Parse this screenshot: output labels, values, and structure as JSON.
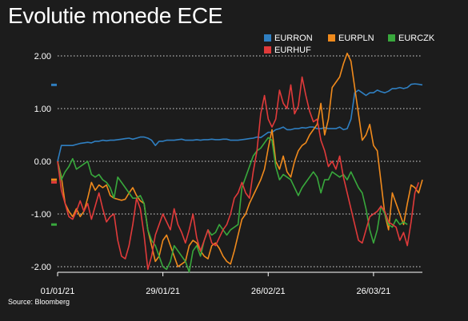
{
  "title": "Evolutie monede ECE",
  "source": "Source: Bloomberg",
  "chart_data": {
    "type": "line",
    "title": "Evolutie monede ECE",
    "xlabel": "",
    "ylabel": "",
    "ylim": [
      -2.1,
      2.1
    ],
    "y_ticks": [
      "2.00",
      "1.00",
      "0.00",
      "-1.00",
      "-2.00"
    ],
    "x_ticks": [
      "01/01/21",
      "29/01/21",
      "26/02/21",
      "26/03/21"
    ],
    "grid": "horizontal dotted",
    "legend_position": "top-right",
    "series": [
      {
        "name": "EURRON",
        "color": "#2f7fc1",
        "values": [
          0.0,
          0.3,
          0.3,
          0.3,
          0.3,
          0.32,
          0.34,
          0.35,
          0.36,
          0.35,
          0.38,
          0.38,
          0.4,
          0.39,
          0.4,
          0.4,
          0.41,
          0.42,
          0.43,
          0.44,
          0.42,
          0.44,
          0.46,
          0.46,
          0.44,
          0.4,
          0.3,
          0.38,
          0.38,
          0.4,
          0.4,
          0.4,
          0.41,
          0.42,
          0.4,
          0.4,
          0.4,
          0.41,
          0.4,
          0.41,
          0.41,
          0.42,
          0.41,
          0.41,
          0.42,
          0.42,
          0.4,
          0.4,
          0.4,
          0.41,
          0.42,
          0.43,
          0.44,
          0.46,
          0.45,
          0.5,
          0.55,
          0.55,
          0.6,
          0.62,
          0.65,
          0.6,
          0.6,
          0.62,
          0.62,
          0.64,
          0.63,
          0.65,
          0.65,
          0.62,
          0.62,
          0.64,
          0.62,
          0.62,
          0.62,
          0.65,
          0.6,
          0.62,
          0.8,
          1.3,
          1.35,
          1.3,
          1.25,
          1.3,
          1.3,
          1.35,
          1.32,
          1.3,
          1.33,
          1.38,
          1.38,
          1.4,
          1.38,
          1.4,
          1.46,
          1.47,
          1.46,
          1.45
        ]
      },
      {
        "name": "EURPLN",
        "color": "#f08a1c",
        "values": [
          0.0,
          -0.3,
          -0.8,
          -0.95,
          -1.05,
          -0.9,
          -1.05,
          -0.95,
          -0.7,
          -0.4,
          -0.55,
          -0.45,
          -0.5,
          -0.45,
          -0.65,
          -0.7,
          -0.72,
          -0.74,
          -0.72,
          -0.6,
          -0.5,
          -0.65,
          -0.75,
          -0.8,
          -1.3,
          -1.6,
          -1.9,
          -1.8,
          -1.5,
          -1.4,
          -1.6,
          -1.8,
          -2.0,
          -1.95,
          -1.9,
          -1.6,
          -1.5,
          -1.55,
          -1.7,
          -1.8,
          -1.85,
          -1.6,
          -1.55,
          -1.65,
          -1.8,
          -1.9,
          -1.95,
          -1.7,
          -1.4,
          -1.1,
          -1.0,
          -0.8,
          -0.65,
          -0.5,
          -0.35,
          -0.15,
          0.25,
          0.6,
          0.0,
          -0.15,
          0.1,
          -0.2,
          -0.3,
          0.0,
          0.2,
          0.3,
          0.35,
          0.5,
          0.6,
          0.7,
          1.1,
          0.5,
          0.8,
          1.4,
          1.5,
          1.6,
          1.85,
          2.05,
          1.9,
          1.4,
          0.9,
          0.4,
          0.5,
          0.7,
          0.3,
          0.2,
          -0.4,
          -1.0,
          -1.3,
          -0.6,
          -0.8,
          -1.0,
          -1.2,
          -0.8,
          -0.45,
          -0.5,
          -0.6,
          -0.35
        ]
      },
      {
        "name": "EURCZK",
        "color": "#38a83c",
        "values": [
          0.0,
          -0.35,
          -0.2,
          -0.1,
          0.05,
          -0.15,
          -0.1,
          -0.05,
          0.0,
          -0.25,
          -0.3,
          -0.25,
          -0.35,
          -0.4,
          -0.5,
          -0.7,
          -0.3,
          -0.4,
          -0.5,
          -0.6,
          -0.7,
          -0.7,
          -0.65,
          -0.8,
          -1.3,
          -1.5,
          -1.6,
          -1.8,
          -2.0,
          -2.05,
          -1.9,
          -1.6,
          -1.7,
          -1.8,
          -1.9,
          -2.1,
          -1.7,
          -1.6,
          -1.8,
          -1.5,
          -1.3,
          -1.4,
          -1.35,
          -1.2,
          -1.3,
          -1.4,
          -1.3,
          -1.25,
          -1.2,
          -0.5,
          -0.3,
          -0.1,
          0.1,
          0.2,
          0.25,
          0.35,
          0.45,
          0.4,
          -0.1,
          -0.35,
          -0.25,
          -0.3,
          -0.35,
          -0.5,
          -0.65,
          -0.5,
          -0.4,
          -0.3,
          -0.2,
          -0.3,
          -0.6,
          -0.35,
          -0.35,
          -0.2,
          -0.25,
          -0.3,
          -0.25,
          -0.35,
          -0.2,
          -0.35,
          -0.5,
          -0.6,
          -0.9,
          -1.3,
          -1.55,
          -1.3,
          -0.85,
          -1.0,
          -1.2,
          -1.25,
          -1.1,
          -1.2,
          -1.15,
          -1.2
        ]
      },
      {
        "name": "EURHUF",
        "color": "#e03a3a",
        "values": [
          0.0,
          -0.55,
          -0.8,
          -1.05,
          -1.1,
          -0.95,
          -0.75,
          -0.95,
          -0.8,
          -1.1,
          -0.85,
          -0.6,
          -0.9,
          -1.15,
          -1.05,
          -1.0,
          -1.5,
          -1.8,
          -1.85,
          -1.6,
          -1.2,
          -0.7,
          -0.9,
          -1.4,
          -2.05,
          -1.8,
          -1.4,
          -1.2,
          -1.0,
          -1.15,
          -1.3,
          -0.9,
          -1.2,
          -1.35,
          -1.55,
          -1.3,
          -1.0,
          -1.45,
          -1.7,
          -1.5,
          -1.3,
          -1.55,
          -1.6,
          -1.45,
          -1.3,
          -1.2,
          -1.0,
          -0.7,
          -0.6,
          -0.4,
          -0.6,
          -0.7,
          -0.2,
          0.2,
          0.9,
          1.25,
          0.8,
          0.65,
          0.8,
          1.35,
          1.1,
          1.0,
          1.45,
          0.9,
          1.05,
          1.6,
          1.25,
          0.95,
          0.75,
          0.8,
          0.4,
          0.2,
          -0.1,
          0.0,
          -0.15,
          0.1,
          -0.3,
          -0.6,
          -0.9,
          -1.2,
          -1.5,
          -1.55,
          -1.3,
          -1.05,
          -1.0,
          -0.95,
          -0.85,
          -0.95,
          -1.15,
          -1.2,
          -1.25,
          -1.5,
          -1.35,
          -1.6,
          -1.15,
          -0.6,
          -0.4
        ]
      }
    ]
  }
}
